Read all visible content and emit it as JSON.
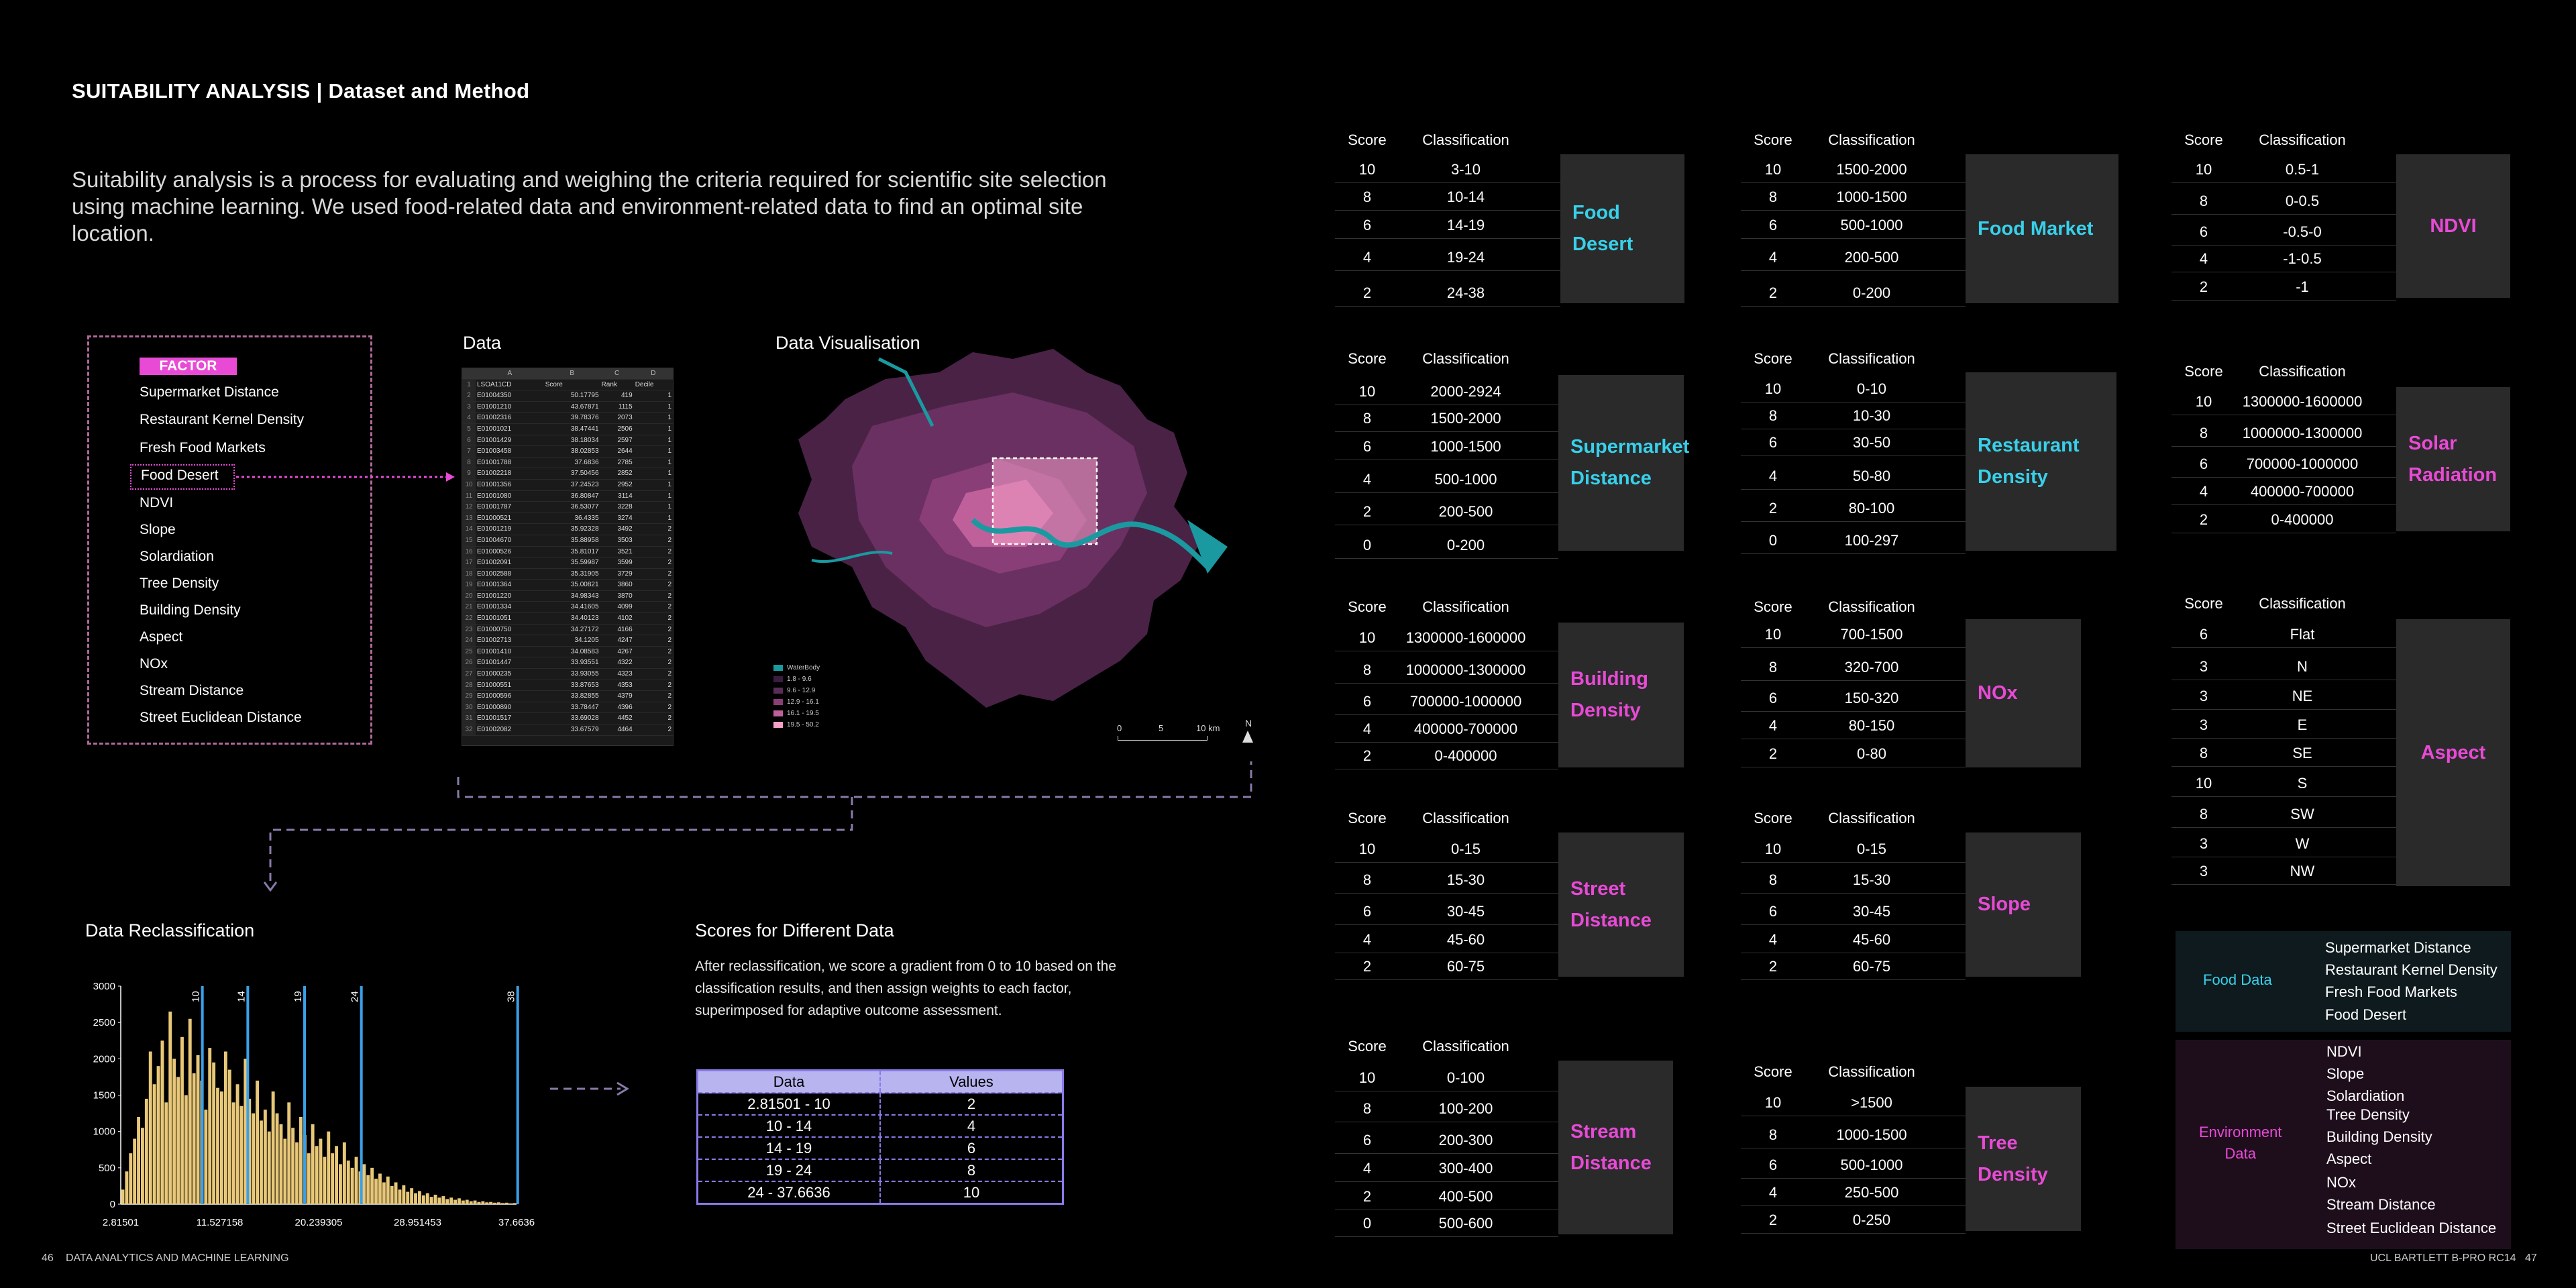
{
  "title": "SUITABILITY ANALYSIS | Dataset and Method",
  "intro": "Suitability analysis is a process for evaluating and weighing the criteria required for scientific site selection using machine learning. We used food-related data and environment-related data to find an optimal site location.",
  "factor": {
    "head": "FACTOR",
    "items": [
      "Supermarket  Distance",
      "Restaurant Kernel Density",
      "Fresh Food Markets",
      "Food Desert",
      "NDVI",
      "Slope",
      "Solardiation",
      "Tree Density",
      "Building Density",
      "Aspect",
      "NOx",
      "Stream Distance",
      "Street Euclidean Distance"
    ]
  },
  "data_label": "Data",
  "dataviz_label": "Data Visualisation",
  "sheet": {
    "cols": [
      "",
      "A",
      "B",
      "C",
      "D"
    ],
    "header": [
      "1",
      "LSOA11CD",
      "Score",
      "Rank",
      "Decile"
    ],
    "rows": [
      [
        "2",
        "E01004350",
        "50.17795",
        "419",
        "1"
      ],
      [
        "3",
        "E01001210",
        "43.67871",
        "1115",
        "1"
      ],
      [
        "4",
        "E01002316",
        "39.78376",
        "2073",
        "1"
      ],
      [
        "5",
        "E01001021",
        "38.47441",
        "2506",
        "1"
      ],
      [
        "6",
        "E01001429",
        "38.18034",
        "2597",
        "1"
      ],
      [
        "7",
        "E01003458",
        "38.02853",
        "2644",
        "1"
      ],
      [
        "8",
        "E01001788",
        "37.6836",
        "2785",
        "1"
      ],
      [
        "9",
        "E01002218",
        "37.50456",
        "2852",
        "1"
      ],
      [
        "10",
        "E01001356",
        "37.24523",
        "2952",
        "1"
      ],
      [
        "11",
        "E01001080",
        "36.80847",
        "3114",
        "1"
      ],
      [
        "12",
        "E01001787",
        "36.53077",
        "3228",
        "1"
      ],
      [
        "13",
        "E01000521",
        "36.4335",
        "3274",
        "1"
      ],
      [
        "14",
        "E01001219",
        "35.92328",
        "3492",
        "2"
      ],
      [
        "15",
        "E01004670",
        "35.88958",
        "3503",
        "2"
      ],
      [
        "16",
        "E01000526",
        "35.81017",
        "3521",
        "2"
      ],
      [
        "17",
        "E01002091",
        "35.59987",
        "3599",
        "2"
      ],
      [
        "18",
        "E01002588",
        "35.31905",
        "3729",
        "2"
      ],
      [
        "19",
        "E01001364",
        "35.00821",
        "3860",
        "2"
      ],
      [
        "20",
        "E01001220",
        "34.98343",
        "3870",
        "2"
      ],
      [
        "21",
        "E01001334",
        "34.41605",
        "4099",
        "2"
      ],
      [
        "22",
        "E01001051",
        "34.40123",
        "4102",
        "2"
      ],
      [
        "23",
        "E01000750",
        "34.27172",
        "4166",
        "2"
      ],
      [
        "24",
        "E01002713",
        "34.1205",
        "4247",
        "2"
      ],
      [
        "25",
        "E01001410",
        "34.08583",
        "4267",
        "2"
      ],
      [
        "26",
        "E01001447",
        "33.93551",
        "4322",
        "2"
      ],
      [
        "27",
        "E01000235",
        "33.93055",
        "4323",
        "2"
      ],
      [
        "28",
        "E01000551",
        "33.87653",
        "4353",
        "2"
      ],
      [
        "29",
        "E01000596",
        "33.82855",
        "4379",
        "2"
      ],
      [
        "30",
        "E01000890",
        "33.78447",
        "4396",
        "2"
      ],
      [
        "31",
        "E01001517",
        "33.69028",
        "4452",
        "2"
      ],
      [
        "32",
        "E01002082",
        "33.67579",
        "4464",
        "2"
      ]
    ]
  },
  "map": {
    "legend": [
      {
        "label": "WaterBody",
        "color": "#1a9aa0"
      },
      {
        "label": "1.8 - 9.6",
        "color": "#3a1d40"
      },
      {
        "label": "9.6 - 12.9",
        "color": "#5a2d58"
      },
      {
        "label": "12.9 - 16.1",
        "color": "#8a3e78"
      },
      {
        "label": "16.1 - 19.5",
        "color": "#c0609a"
      },
      {
        "label": "19.5 - 50.2",
        "color": "#f4a0c8"
      }
    ],
    "scale": [
      "0",
      "5",
      "10 km"
    ],
    "north": "N"
  },
  "reclass_label": "Data Reclassification",
  "scores_label": "Scores for Different Data",
  "scores_text": "After reclassification, we score a gradient from 0 to 10 based on the classification results, and then assign weights to each factor, superimposed for adaptive outcome assessment.",
  "scores_table": {
    "headers": [
      "Data",
      "Values"
    ],
    "rows": [
      [
        "2.81501 - 10",
        "2"
      ],
      [
        "10 - 14",
        "4"
      ],
      [
        "14 - 19",
        "6"
      ],
      [
        "19 - 24",
        "8"
      ],
      [
        "24 - 37.6636",
        "10"
      ]
    ]
  },
  "chart_data": {
    "type": "bar",
    "title": "",
    "yticks": [
      "3000",
      "2500",
      "2000",
      "1500",
      "1000",
      "500",
      "0"
    ],
    "ylim": [
      0,
      3000
    ],
    "xticks": [
      "2.81501",
      "11.527158",
      "20.239305",
      "28.951453",
      "37.6636"
    ],
    "xlim": [
      2.81501,
      37.6636
    ],
    "breaks": [
      {
        "value": 10,
        "label": "10"
      },
      {
        "value": 14,
        "label": "14"
      },
      {
        "value": 19,
        "label": "19"
      },
      {
        "value": 24,
        "label": "24"
      },
      {
        "value": 38,
        "label": "38"
      }
    ],
    "bar_color": "#e8c878",
    "break_color": "#3aa0e8",
    "values": [
      200,
      450,
      700,
      900,
      1200,
      1050,
      1450,
      2100,
      1650,
      1900,
      2250,
      1400,
      2650,
      2000,
      1750,
      2300,
      1500,
      2550,
      1800,
      2050,
      1700,
      1300,
      2150,
      1950,
      1600,
      1550,
      2100,
      1850,
      1400,
      1650,
      1350,
      2000,
      1450,
      1250,
      1700,
      1150,
      1300,
      1000,
      1550,
      1250,
      1100,
      900,
      1400,
      1050,
      850,
      1200,
      950,
      700,
      1100,
      800,
      900,
      650,
      1000,
      700,
      800,
      550,
      850,
      600,
      500,
      650,
      450,
      550,
      400,
      500,
      350,
      420,
      300,
      380,
      250,
      300,
      200,
      260,
      170,
      220,
      150,
      180,
      120,
      150,
      100,
      130,
      90,
      110,
      70,
      90,
      60,
      80,
      50,
      60,
      40,
      50,
      30,
      40,
      25,
      30,
      20,
      25,
      15,
      20,
      10,
      15
    ]
  },
  "cards": [
    {
      "key": "food_desert",
      "title_lines": [
        "Food Desert"
      ],
      "color": "cyan",
      "rows": [
        [
          "10",
          "3-10"
        ],
        [
          "8",
          "10-14"
        ],
        [
          "6",
          "14-19"
        ],
        [
          "4",
          "19-24"
        ],
        [
          "2",
          "24-38"
        ]
      ]
    },
    {
      "key": "food_market",
      "title_lines": [
        "Food Market"
      ],
      "color": "cyan",
      "rows": [
        [
          "10",
          "1500-2000"
        ],
        [
          "8",
          "1000-1500"
        ],
        [
          "6",
          "500-1000"
        ],
        [
          "4",
          "200-500"
        ],
        [
          "2",
          "0-200"
        ]
      ]
    },
    {
      "key": "ndvi",
      "title_lines": [
        "NDVI"
      ],
      "color": "mag",
      "rows": [
        [
          "10",
          "0.5-1"
        ],
        [
          "8",
          "0-0.5"
        ],
        [
          "6",
          "-0.5-0"
        ],
        [
          "4",
          "-1-0.5"
        ],
        [
          "2",
          "-1"
        ]
      ]
    },
    {
      "key": "supermarket",
      "title_lines": [
        "Supermarket",
        "Distance"
      ],
      "color": "cyan",
      "rows": [
        [
          "10",
          "2000-2924"
        ],
        [
          "8",
          "1500-2000"
        ],
        [
          "6",
          "1000-1500"
        ],
        [
          "4",
          "500-1000"
        ],
        [
          "2",
          "200-500"
        ],
        [
          "0",
          "0-200"
        ]
      ]
    },
    {
      "key": "restaurant",
      "title_lines": [
        "Restaurant",
        "Density"
      ],
      "color": "cyan",
      "rows": [
        [
          "10",
          "0-10"
        ],
        [
          "8",
          "10-30"
        ],
        [
          "6",
          "30-50"
        ],
        [
          "4",
          "50-80"
        ],
        [
          "2",
          "80-100"
        ],
        [
          "0",
          "100-297"
        ]
      ]
    },
    {
      "key": "solar",
      "title_lines": [
        "Solar",
        "Radiation"
      ],
      "color": "mag",
      "rows": [
        [
          "10",
          "1300000-1600000"
        ],
        [
          "8",
          "1000000-1300000"
        ],
        [
          "6",
          "700000-1000000"
        ],
        [
          "4",
          "400000-700000"
        ],
        [
          "2",
          "0-400000"
        ]
      ]
    },
    {
      "key": "building",
      "title_lines": [
        "Building",
        "Density"
      ],
      "color": "mag",
      "rows": [
        [
          "10",
          "1300000-1600000"
        ],
        [
          "8",
          "1000000-1300000"
        ],
        [
          "6",
          "700000-1000000"
        ],
        [
          "4",
          "400000-700000"
        ],
        [
          "2",
          "0-400000"
        ]
      ]
    },
    {
      "key": "nox",
      "title_lines": [
        "NOx"
      ],
      "color": "mag",
      "rows": [
        [
          "10",
          "700-1500"
        ],
        [
          "8",
          "320-700"
        ],
        [
          "6",
          "150-320"
        ],
        [
          "4",
          "80-150"
        ],
        [
          "2",
          "0-80"
        ]
      ]
    },
    {
      "key": "aspect",
      "title_lines": [
        "Aspect"
      ],
      "color": "mag",
      "rows": [
        [
          "6",
          "Flat"
        ],
        [
          "3",
          "N"
        ],
        [
          "3",
          "NE"
        ],
        [
          "3",
          "E"
        ],
        [
          "8",
          "SE"
        ],
        [
          "10",
          "S"
        ],
        [
          "8",
          "SW"
        ],
        [
          "3",
          "W"
        ],
        [
          "3",
          "NW"
        ]
      ]
    },
    {
      "key": "street",
      "title_lines": [
        "Street",
        "Distance"
      ],
      "color": "mag",
      "rows": [
        [
          "10",
          "0-15"
        ],
        [
          "8",
          "15-30"
        ],
        [
          "6",
          "30-45"
        ],
        [
          "4",
          "45-60"
        ],
        [
          "2",
          "60-75"
        ]
      ]
    },
    {
      "key": "slope",
      "title_lines": [
        "Slope"
      ],
      "color": "mag",
      "rows": [
        [
          "10",
          "0-15"
        ],
        [
          "8",
          "15-30"
        ],
        [
          "6",
          "30-45"
        ],
        [
          "4",
          "45-60"
        ],
        [
          "2",
          "60-75"
        ]
      ]
    },
    {
      "key": "stream",
      "title_lines": [
        "Stream",
        "Distance"
      ],
      "color": "mag",
      "rows": [
        [
          "10",
          "0-100"
        ],
        [
          "8",
          "100-200"
        ],
        [
          "6",
          "200-300"
        ],
        [
          "4",
          "300-400"
        ],
        [
          "2",
          "400-500"
        ],
        [
          "0",
          "500-600"
        ]
      ]
    },
    {
      "key": "tree",
      "title_lines": [
        "Tree",
        "Density"
      ],
      "color": "mag",
      "rows": [
        [
          "10",
          ">1500"
        ],
        [
          "8",
          "1000-1500"
        ],
        [
          "6",
          "500-1000"
        ],
        [
          "4",
          "250-500"
        ],
        [
          "2",
          "0-250"
        ]
      ]
    }
  ],
  "card_headers": [
    "Score",
    "Classification"
  ],
  "legend_groups": {
    "food": {
      "label": "Food Data",
      "items": [
        "Supermarket  Distance",
        "Restaurant Kernel Density",
        "Fresh Food Markets",
        "Food Desert"
      ]
    },
    "env": {
      "label_lines": [
        "Environment",
        "Data"
      ],
      "items": [
        "NDVI",
        "Slope",
        "Solardiation",
        "Tree Density",
        "Building Density",
        "Aspect",
        "NOx",
        "Stream Distance",
        "Street Euclidean Distance"
      ]
    }
  },
  "footer": {
    "left_num": "46",
    "left_text": "DATA ANALYTICS AND MACHINE  LEARNING",
    "right_text": "UCL BARTLETT B-PRO RC14",
    "right_num": "47"
  },
  "colors": {
    "cyan": "#38d0ea",
    "magenta": "#e84ad6",
    "card_bg": "#2a2a2a"
  }
}
